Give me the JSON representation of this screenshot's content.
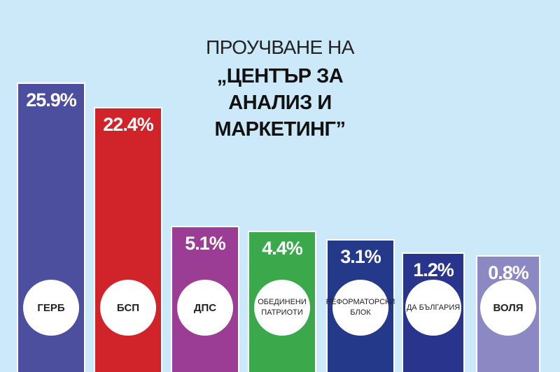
{
  "chart_data": {
    "type": "bar",
    "title": "ПРОУЧВАНЕ НА",
    "subtitle": "„ЦЕНТЪР ЗА АНАЛИЗ И МАРКЕТИНГ”",
    "categories": [
      "ГЕРБ",
      "БСП",
      "ДПС",
      "ОБЕДИНЕНИ ПАТРИОТИ",
      "РЕФОРМАТОРСКИ БЛОК",
      "ДА БЪЛГАРИЯ",
      "ВОЛЯ"
    ],
    "values": [
      25.9,
      22.4,
      5.1,
      4.4,
      3.1,
      1.2,
      0.8
    ],
    "value_labels": [
      "25.9%",
      "22.4%",
      "5.1%",
      "4.4%",
      "3.1%",
      "1.2%",
      "0.8%"
    ],
    "colors": [
      "#4b4f9d",
      "#d1232a",
      "#9b3d95",
      "#3ba94b",
      "#24398a",
      "#29358c",
      "#8b88c3"
    ]
  }
}
